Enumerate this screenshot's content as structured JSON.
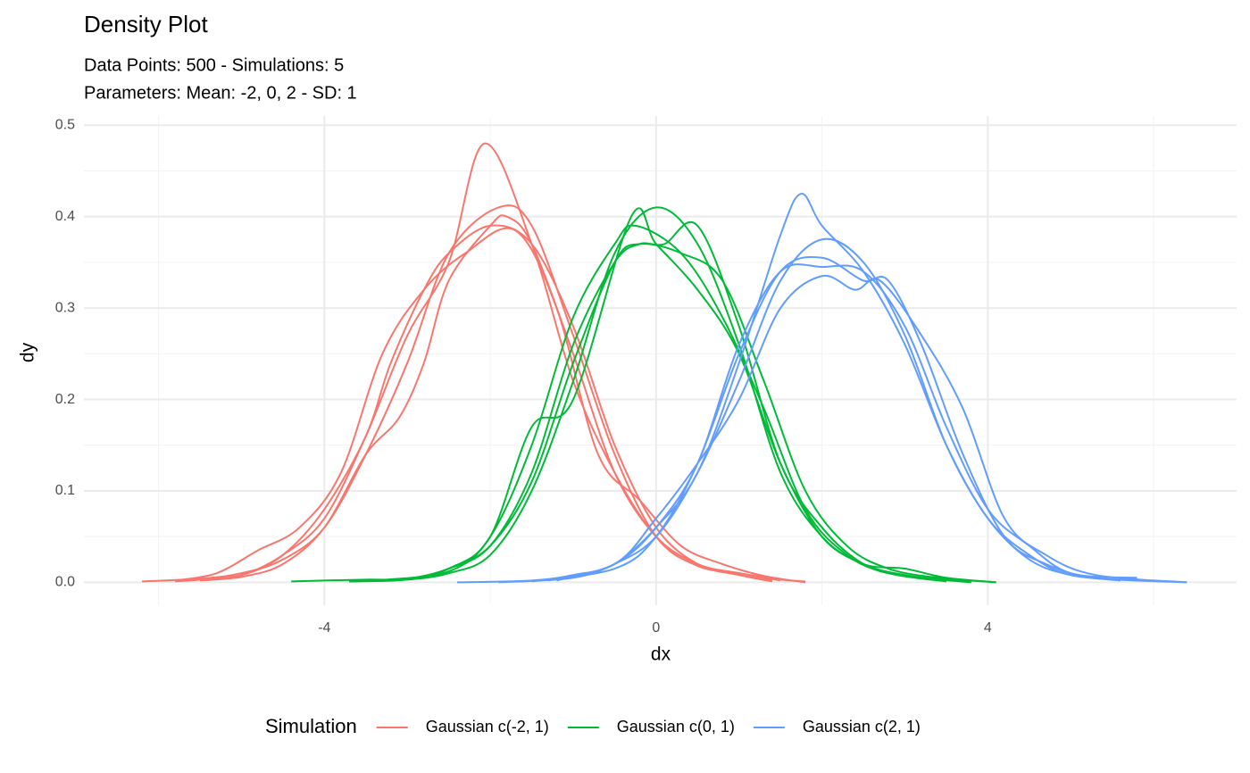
{
  "chart_data": {
    "type": "density",
    "title": "Density Plot",
    "subtitle": [
      "Data Points: 500 - Simulations: 5",
      "Parameters: Mean: -2, 0, 2 - SD: 1"
    ],
    "x_label": "dx",
    "y_label": "dy",
    "legend_title": "Simulation",
    "legend_position": "bottom",
    "grid": true,
    "xlim": [
      -6.9,
      7.0
    ],
    "ylim": [
      -0.025,
      0.51
    ],
    "xticks": [
      -4,
      0,
      4
    ],
    "xminorticks": [
      -6,
      -2,
      2,
      6
    ],
    "yticks": [
      0.0,
      0.1,
      0.2,
      0.3,
      0.4,
      0.5
    ],
    "yticklabels": [
      "0.0",
      "0.1",
      "0.2",
      "0.3",
      "0.4",
      "0.5"
    ],
    "yminorticks": [
      0.05,
      0.15,
      0.25,
      0.35,
      0.45
    ],
    "series": [
      {
        "name": "Gaussian c(-2, 1)",
        "color": "#F8766D",
        "lines": [
          {
            "x": [
              -5.8,
              -5.5,
              -5,
              -4.5,
              -4,
              -3.5,
              -3,
              -2.5,
              -2.07,
              -1.5,
              -1,
              -0.5,
              0,
              0.5,
              1,
              1.5
            ],
            "y": [
              0.001,
              0.003,
              0.008,
              0.03,
              0.07,
              0.16,
              0.27,
              0.35,
              0.48,
              0.37,
              0.22,
              0.12,
              0.05,
              0.02,
              0.01,
              0.002
            ]
          },
          {
            "x": [
              -6.2,
              -5.5,
              -5,
              -4.5,
              -4,
              -3.5,
              -3,
              -2.5,
              -1.9,
              -1.5,
              -1,
              -0.5,
              0,
              0.5,
              1,
              1.5,
              1.8
            ],
            "y": [
              0.001,
              0.004,
              0.01,
              0.025,
              0.06,
              0.14,
              0.24,
              0.36,
              0.41,
              0.39,
              0.27,
              0.14,
              0.05,
              0.018,
              0.01,
              0.003,
              0.001
            ]
          },
          {
            "x": [
              -5.5,
              -5,
              -4.5,
              -4,
              -3.5,
              -3.1,
              -2.8,
              -2.5,
              -2,
              -1.8,
              -1.5,
              -1,
              -0.5,
              0,
              0.5,
              1,
              1.4
            ],
            "y": [
              0.002,
              0.006,
              0.02,
              0.06,
              0.14,
              0.18,
              0.24,
              0.33,
              0.39,
              0.4,
              0.37,
              0.25,
              0.12,
              0.05,
              0.02,
              0.008,
              0.002
            ]
          },
          {
            "x": [
              -5.6,
              -5,
              -4.5,
              -4,
              -3.5,
              -3.2,
              -2.8,
              -2.5,
              -2,
              -1.5,
              -1,
              -0.5,
              0,
              0.5,
              1,
              1.4
            ],
            "y": [
              0.003,
              0.008,
              0.03,
              0.08,
              0.16,
              0.24,
              0.32,
              0.36,
              0.39,
              0.37,
              0.28,
              0.15,
              0.06,
              0.02,
              0.008,
              0.001
            ]
          },
          {
            "x": [
              -5.8,
              -5.3,
              -4.8,
              -4.3,
              -3.8,
              -3.3,
              -2.8,
              -2.3,
              -1.7,
              -1.2,
              -0.7,
              -0.2,
              0.3,
              0.8,
              1.3,
              1.8
            ],
            "y": [
              0.002,
              0.01,
              0.035,
              0.06,
              0.12,
              0.25,
              0.32,
              0.36,
              0.385,
              0.3,
              0.14,
              0.09,
              0.04,
              0.02,
              0.007,
              0.0
            ]
          }
        ]
      },
      {
        "name": "Gaussian c(0, 1)",
        "color": "#00BA38",
        "lines": [
          {
            "x": [
              -4.4,
              -3.5,
              -3,
              -2.5,
              -2,
              -1.5,
              -1,
              -0.5,
              0,
              0.5,
              1,
              1.5,
              2,
              2.5,
              3,
              3.5,
              4.1
            ],
            "y": [
              0.001,
              0.003,
              0.003,
              0.01,
              0.03,
              0.1,
              0.22,
              0.36,
              0.41,
              0.37,
              0.26,
              0.12,
              0.05,
              0.02,
              0.015,
              0.005,
              0.0
            ]
          },
          {
            "x": [
              -3.7,
              -3,
              -2.5,
              -2,
              -1.5,
              -1,
              -0.3,
              0,
              0.5,
              1,
              1.5,
              2,
              2.5,
              3,
              3.7
            ],
            "y": [
              0.001,
              0.003,
              0.015,
              0.05,
              0.17,
              0.2,
              0.4,
              0.37,
              0.32,
              0.25,
              0.13,
              0.05,
              0.02,
              0.008,
              0.001
            ]
          },
          {
            "x": [
              -3.6,
              -3,
              -2.5,
              -2,
              -1.5,
              -1,
              -0.5,
              -0.2,
              0.1,
              0.5,
              1,
              1.5,
              2,
              2.5,
              3,
              3.8
            ],
            "y": [
              0.002,
              0.004,
              0.015,
              0.04,
              0.12,
              0.26,
              0.35,
              0.37,
              0.37,
              0.39,
              0.28,
              0.13,
              0.06,
              0.02,
              0.007,
              0.0
            ]
          },
          {
            "x": [
              -3.4,
              -2.5,
              -2,
              -1.5,
              -1,
              -0.5,
              -0.25,
              0.3,
              0.8,
              1.3,
              1.8,
              2.3,
              2.8,
              3.5
            ],
            "y": [
              0.002,
              0.012,
              0.05,
              0.15,
              0.29,
              0.37,
              0.39,
              0.36,
              0.29,
              0.19,
              0.08,
              0.03,
              0.01,
              0.001
            ]
          },
          {
            "x": [
              -3.7,
              -3,
              -2.5,
              -2,
              -1.5,
              -1,
              -0.5,
              -0.2,
              0.3,
              0.8,
              1.3,
              1.8,
              2.3,
              2.8,
              3.4,
              4.1
            ],
            "y": [
              0.001,
              0.004,
              0.015,
              0.04,
              0.11,
              0.24,
              0.35,
              0.37,
              0.36,
              0.33,
              0.22,
              0.1,
              0.04,
              0.015,
              0.005,
              0.0
            ]
          }
        ]
      },
      {
        "name": "Gaussian c(2, 1)",
        "color": "#619CFF",
        "lines": [
          {
            "x": [
              -2.4,
              -1.5,
              -1,
              -0.5,
              0,
              0.5,
              1,
              1.5,
              1.75,
              2,
              2.5,
              3,
              3.5,
              4,
              4.5,
              5,
              5.8
            ],
            "y": [
              0.0,
              0.002,
              0.008,
              0.02,
              0.06,
              0.12,
              0.24,
              0.38,
              0.425,
              0.39,
              0.34,
              0.26,
              0.15,
              0.07,
              0.03,
              0.008,
              0.002
            ]
          },
          {
            "x": [
              -1.9,
              -1,
              -0.5,
              0,
              0.5,
              1,
              1.5,
              2,
              2.5,
              3,
              3.5,
              4,
              4.5,
              5,
              5.6
            ],
            "y": [
              0.0,
              0.005,
              0.02,
              0.05,
              0.12,
              0.22,
              0.33,
              0.375,
              0.35,
              0.27,
              0.15,
              0.07,
              0.025,
              0.008,
              0.002
            ]
          },
          {
            "x": [
              -1.5,
              -0.5,
              0,
              0.5,
              1,
              1.5,
              2,
              2.5,
              2.8,
              3.2,
              3.7,
              4.2,
              4.7,
              5.3,
              6.4
            ],
            "y": [
              0.001,
              0.015,
              0.05,
              0.13,
              0.25,
              0.34,
              0.355,
              0.33,
              0.33,
              0.26,
              0.14,
              0.05,
              0.02,
              0.005,
              0.0
            ]
          },
          {
            "x": [
              -1.3,
              -0.5,
              0,
              0.5,
              1,
              1.5,
              2,
              2.4,
              2.7,
              3.2,
              3.7,
              4.2,
              4.7,
              5.3,
              6.4
            ],
            "y": [
              0.002,
              0.02,
              0.07,
              0.13,
              0.2,
              0.3,
              0.335,
              0.32,
              0.33,
              0.27,
              0.19,
              0.07,
              0.03,
              0.008,
              0.0
            ]
          },
          {
            "x": [
              -1.2,
              -0.5,
              0,
              0.5,
              1,
              1.5,
              2,
              2.5,
              3,
              3.5,
              4,
              4.5,
              5,
              5.8
            ],
            "y": [
              0.002,
              0.02,
              0.06,
              0.13,
              0.26,
              0.34,
              0.345,
              0.34,
              0.28,
              0.17,
              0.08,
              0.04,
              0.01,
              0.005
            ]
          }
        ]
      }
    ]
  }
}
